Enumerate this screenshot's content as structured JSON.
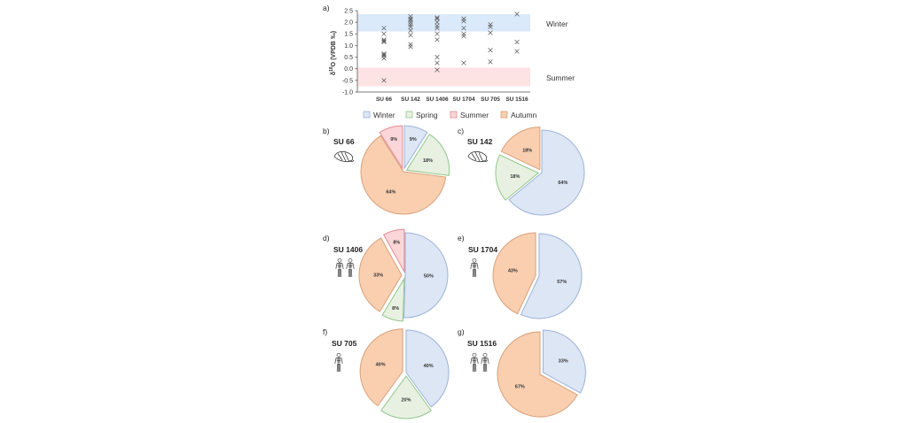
{
  "colors": {
    "winter": {
      "fill": "#dce6f4",
      "stroke": "#9db3d8"
    },
    "spring": {
      "fill": "#e8f1e1",
      "stroke": "#8fc78a"
    },
    "summer": {
      "fill": "#fbd6d8",
      "stroke": "#e58b92"
    },
    "autumn": {
      "fill": "#f9cfb0",
      "stroke": "#d9a07a"
    },
    "band_winter": "#dbeafa",
    "band_summer": "#fde3e3",
    "marker": "#555555"
  },
  "chart_data": [
    {
      "panel": "a)",
      "type": "scatter",
      "title": "",
      "xlabel": "",
      "ylabel": "δ18O (VPDB ‰)",
      "ylabel_parts": {
        "delta": "δ",
        "sup": "18",
        "rest": "O (VPDB ‰)"
      },
      "ylim": [
        -1.0,
        2.5
      ],
      "yticks": [
        "-1.0",
        "-0.5",
        "0.0",
        "0.5",
        "1.0",
        "1.5",
        "2.0",
        "2.5"
      ],
      "ytick_values": [
        -1.0,
        -0.5,
        0.0,
        0.5,
        1.0,
        1.5,
        2.0,
        2.5
      ],
      "categories": [
        "SU 66",
        "SU 142",
        "SU 1406",
        "SU 1704",
        "SU 705",
        "SU 1516"
      ],
      "bands": [
        {
          "name": "Winter",
          "range": [
            1.6,
            2.35
          ]
        },
        {
          "name": "Summer",
          "range": [
            -0.75,
            0.05
          ]
        }
      ],
      "series": [
        {
          "category": "SU 66",
          "values": [
            1.75,
            1.5,
            1.25,
            1.2,
            1.15,
            0.65,
            0.6,
            0.55,
            0.45,
            -0.5
          ]
        },
        {
          "category": "SU 142",
          "values": [
            2.25,
            2.15,
            2.1,
            2.0,
            1.9,
            1.8,
            1.65,
            1.45,
            1.05,
            0.95
          ]
        },
        {
          "category": "SU 1406",
          "values": [
            2.2,
            2.15,
            2.0,
            1.85,
            1.75,
            1.5,
            1.25,
            0.5,
            0.25,
            -0.05
          ]
        },
        {
          "category": "SU 1704",
          "values": [
            2.15,
            2.05,
            1.75,
            1.5,
            1.4,
            0.25
          ]
        },
        {
          "category": "SU 705",
          "values": [
            1.9,
            1.8,
            1.55,
            0.8,
            0.3
          ]
        },
        {
          "category": "SU 1516",
          "values": [
            2.35,
            1.15,
            0.75
          ]
        }
      ],
      "legend": [
        "Winter",
        "Spring",
        "Summer",
        "Autumn"
      ],
      "legend_position": "bottom"
    },
    {
      "panel": "b)",
      "type": "pie",
      "title": "SU 66",
      "icon": "shell",
      "slices": [
        {
          "season": "winter",
          "value": 9,
          "label": "9%"
        },
        {
          "season": "spring",
          "value": 18,
          "label": "18%"
        },
        {
          "season": "autumn",
          "value": 64,
          "label": "64%"
        },
        {
          "season": "summer",
          "value": 9,
          "label": "9%"
        }
      ]
    },
    {
      "panel": "c)",
      "type": "pie",
      "title": "SU 142",
      "icon": "shell",
      "slices": [
        {
          "season": "winter",
          "value": 64,
          "label": "64%"
        },
        {
          "season": "spring",
          "value": 18,
          "label": "18%"
        },
        {
          "season": "autumn",
          "value": 18,
          "label": "18%"
        }
      ]
    },
    {
      "panel": "d)",
      "type": "pie",
      "title": "SU 1406",
      "icon": "skeleton-2",
      "slices": [
        {
          "season": "winter",
          "value": 50,
          "label": "50%"
        },
        {
          "season": "spring",
          "value": 8,
          "label": "8%"
        },
        {
          "season": "autumn",
          "value": 33,
          "label": "33%"
        },
        {
          "season": "summer",
          "value": 8,
          "label": "8%"
        }
      ]
    },
    {
      "panel": "e)",
      "type": "pie",
      "title": "SU 1704",
      "icon": "skeleton-1",
      "slices": [
        {
          "season": "winter",
          "value": 57,
          "label": "57%"
        },
        {
          "season": "autumn",
          "value": 43,
          "label": "43%"
        }
      ]
    },
    {
      "panel": "f)",
      "type": "pie",
      "title": "SU 705",
      "icon": "skeleton-1",
      "slices": [
        {
          "season": "winter",
          "value": 40,
          "label": "40%"
        },
        {
          "season": "spring",
          "value": 20,
          "label": "20%"
        },
        {
          "season": "autumn",
          "value": 40,
          "label": "40%"
        }
      ]
    },
    {
      "panel": "g)",
      "type": "pie",
      "title": "SU 1516",
      "icon": "skeleton-2",
      "slices": [
        {
          "season": "winter",
          "value": 33,
          "label": "33%"
        },
        {
          "season": "autumn",
          "value": 67,
          "label": "67%"
        }
      ]
    }
  ]
}
